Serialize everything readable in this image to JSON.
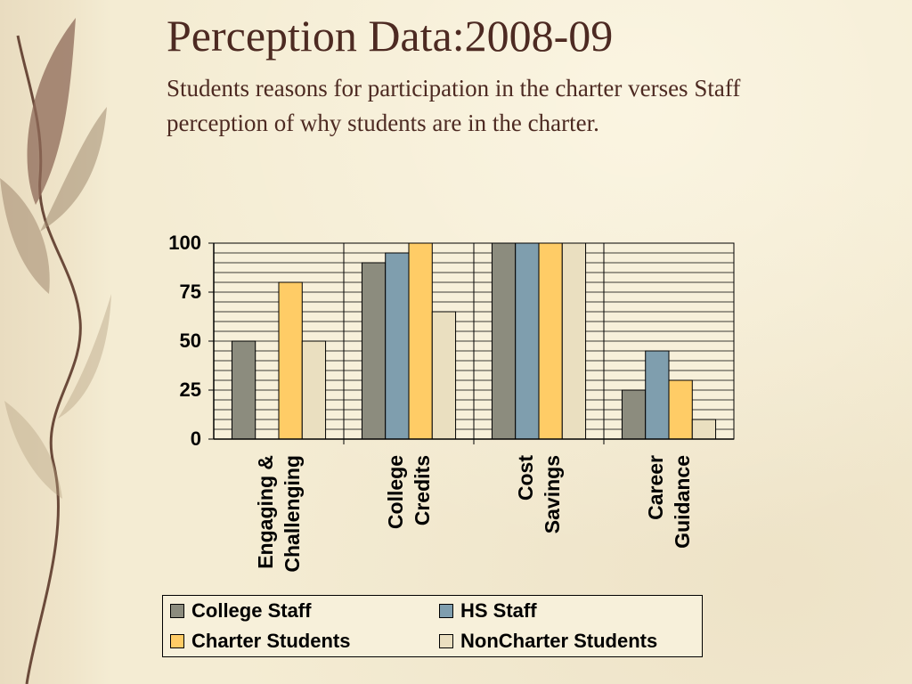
{
  "slide": {
    "title": "Perception Data:2008-09",
    "subtitle": "Students reasons for participation in the charter verses Staff perception of why students are in the charter."
  },
  "decoration": {
    "icon": "leaf-branch-icon"
  },
  "chart_data": {
    "type": "bar",
    "categories": [
      [
        "Engaging &",
        "Challenging"
      ],
      [
        "College",
        "Credits"
      ],
      [
        "Cost",
        "Savings"
      ],
      [
        "Career",
        "Guidance"
      ]
    ],
    "series": [
      {
        "name": "College Staff",
        "color": "#8c8c7e",
        "values": [
          50,
          90,
          100,
          25
        ]
      },
      {
        "name": "HS Staff",
        "color": "#7f9eae",
        "values": [
          0,
          95,
          100,
          45
        ]
      },
      {
        "name": "Charter Students",
        "color": "#ffcc66",
        "values": [
          80,
          100,
          100,
          30
        ]
      },
      {
        "name": "NonCharter Students",
        "color": "#eadfc0",
        "values": [
          50,
          65,
          100,
          10
        ]
      }
    ],
    "yticks": [
      0,
      25,
      50,
      75,
      100
    ],
    "ylim": [
      0,
      100
    ],
    "grid": true,
    "legend_position": "bottom"
  }
}
